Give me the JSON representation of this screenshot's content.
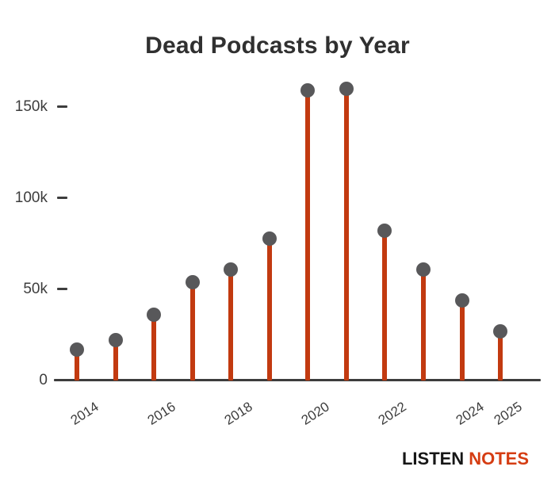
{
  "chart_data": {
    "type": "lollipop",
    "title": "Dead Podcasts by Year",
    "xlabel": "",
    "ylabel": "",
    "categories": [
      2014,
      2015,
      2016,
      2017,
      2018,
      2019,
      2020,
      2021,
      2022,
      2023,
      2024,
      2025
    ],
    "values": [
      17000,
      22000,
      36000,
      54000,
      61000,
      78000,
      159000,
      160000,
      82000,
      61000,
      44000,
      27000
    ],
    "values_unit": "dead podcasts (estimated from axis)",
    "ylim": [
      0,
      165000
    ],
    "grid": false,
    "legend": null,
    "y_ticks": [
      {
        "value": 0,
        "label": "0"
      },
      {
        "value": 50000,
        "label": "50k"
      },
      {
        "value": 100000,
        "label": "100k"
      },
      {
        "value": 150000,
        "label": "150k"
      }
    ],
    "x_tick_labels": [
      "2014",
      "2016",
      "2018",
      "2020",
      "2022",
      "2024",
      "2025"
    ],
    "colors": {
      "stem": "#c23a10",
      "marker": "#58585a",
      "axis": "#3d3d3d",
      "title": "#303030",
      "tick_label": "#3d3d3d"
    }
  },
  "footer": {
    "logo_listen": "LISTEN",
    "logo_notes": "NOTES",
    "logo_listen_color": "#161616",
    "logo_notes_color": "#d53d13"
  }
}
